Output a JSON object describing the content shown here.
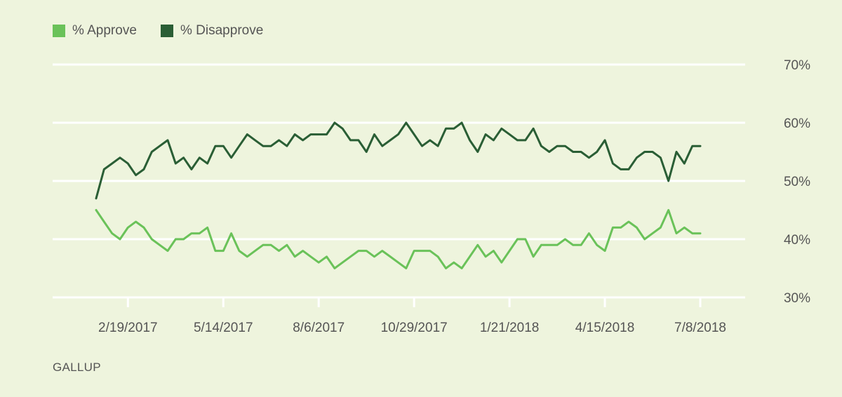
{
  "colors": {
    "approve": "#6ac259",
    "disapprove": "#2a5e35",
    "grid": "#ffffff",
    "text": "#555555",
    "background": "#eef4dd"
  },
  "legend": {
    "approve_label": "% Approve",
    "disapprove_label": "% Disapprove"
  },
  "source": "GALLUP",
  "chart_data": {
    "type": "line",
    "x_axis": {
      "type": "date",
      "ticks": [
        "2017-02-19",
        "2017-05-14",
        "2017-08-06",
        "2017-10-29",
        "2018-01-21",
        "2018-04-15",
        "2018-07-08"
      ],
      "tick_labels": [
        "2/19/2017",
        "5/14/2017",
        "8/6/2017",
        "10/29/2017",
        "1/21/2018",
        "4/15/2018",
        "7/8/2018"
      ]
    },
    "y_axis": {
      "min": 30,
      "max": 70,
      "ticks": [
        30,
        40,
        50,
        60,
        70
      ],
      "tick_labels": [
        "30%",
        "40%",
        "50%",
        "60%",
        "70%"
      ]
    },
    "grid": true,
    "legend_position": "top-left",
    "x": [
      "2017-01-22",
      "2017-01-29",
      "2017-02-05",
      "2017-02-12",
      "2017-02-19",
      "2017-02-26",
      "2017-03-05",
      "2017-03-12",
      "2017-03-19",
      "2017-03-26",
      "2017-04-02",
      "2017-04-09",
      "2017-04-16",
      "2017-04-23",
      "2017-04-30",
      "2017-05-07",
      "2017-05-14",
      "2017-05-21",
      "2017-05-28",
      "2017-06-04",
      "2017-06-11",
      "2017-06-18",
      "2017-06-25",
      "2017-07-02",
      "2017-07-09",
      "2017-07-16",
      "2017-07-23",
      "2017-07-30",
      "2017-08-06",
      "2017-08-13",
      "2017-08-20",
      "2017-08-27",
      "2017-09-03",
      "2017-09-10",
      "2017-09-17",
      "2017-09-24",
      "2017-10-01",
      "2017-10-08",
      "2017-10-15",
      "2017-10-22",
      "2017-10-29",
      "2017-11-05",
      "2017-11-12",
      "2017-11-19",
      "2017-11-26",
      "2017-12-03",
      "2017-12-10",
      "2017-12-17",
      "2017-12-24",
      "2017-12-31",
      "2018-01-07",
      "2018-01-14",
      "2018-01-21",
      "2018-01-28",
      "2018-02-04",
      "2018-02-11",
      "2018-02-18",
      "2018-02-25",
      "2018-03-04",
      "2018-03-11",
      "2018-03-18",
      "2018-03-25",
      "2018-04-01",
      "2018-04-08",
      "2018-04-15",
      "2018-04-22",
      "2018-04-29",
      "2018-05-06",
      "2018-05-13",
      "2018-05-20",
      "2018-05-27",
      "2018-06-03",
      "2018-06-10",
      "2018-06-17",
      "2018-06-24",
      "2018-07-01",
      "2018-07-08"
    ],
    "series": [
      {
        "name": "% Approve",
        "color": "#6ac259",
        "values": [
          45,
          43,
          41,
          40,
          42,
          43,
          42,
          40,
          39,
          38,
          40,
          40,
          41,
          41,
          42,
          38,
          38,
          41,
          38,
          37,
          38,
          39,
          39,
          38,
          39,
          37,
          38,
          37,
          36,
          37,
          35,
          36,
          37,
          38,
          38,
          37,
          38,
          37,
          36,
          35,
          38,
          38,
          38,
          37,
          35,
          36,
          35,
          37,
          39,
          37,
          38,
          36,
          38,
          40,
          40,
          37,
          39,
          39,
          39,
          40,
          39,
          39,
          41,
          39,
          38,
          42,
          42,
          43,
          42,
          40,
          41,
          42,
          45,
          41,
          42,
          41,
          41
        ]
      },
      {
        "name": "% Disapprove",
        "color": "#2a5e35",
        "values": [
          47,
          52,
          53,
          54,
          53,
          51,
          52,
          55,
          56,
          57,
          53,
          54,
          52,
          54,
          53,
          56,
          56,
          54,
          56,
          58,
          57,
          56,
          56,
          57,
          56,
          58,
          57,
          58,
          58,
          58,
          60,
          59,
          57,
          57,
          55,
          58,
          56,
          57,
          58,
          60,
          58,
          56,
          57,
          56,
          59,
          59,
          60,
          57,
          55,
          58,
          57,
          59,
          58,
          57,
          57,
          59,
          56,
          55,
          56,
          56,
          55,
          55,
          54,
          55,
          57,
          53,
          52,
          52,
          54,
          55,
          55,
          54,
          50,
          55,
          53,
          56,
          56
        ]
      }
    ]
  }
}
